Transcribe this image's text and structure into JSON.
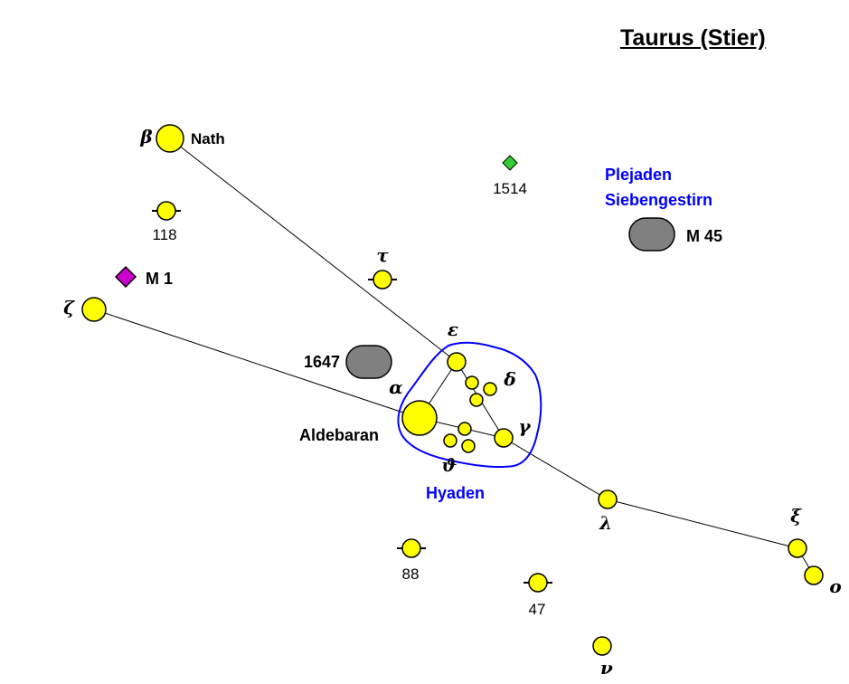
{
  "title": "Taurus (Stier)",
  "colors": {
    "star_fill": "#ffff00",
    "star_stroke": "#000000",
    "nebula_green": "#33cc33",
    "crab_magenta": "#cc00cc",
    "cluster_gray": "#808080",
    "hyades_outline": "#0000ff",
    "blue_label": "#0000ff",
    "line": "#000000"
  },
  "stars": [
    {
      "id": "beta",
      "size": "large",
      "greek": "β",
      "name": "Nath"
    },
    {
      "id": "zeta",
      "size": "medium",
      "greek": "ζ"
    },
    {
      "id": "118",
      "size": "small",
      "number": "118",
      "variable": true
    },
    {
      "id": "tau",
      "size": "small",
      "greek": "τ",
      "variable": true
    },
    {
      "id": "epsilon",
      "size": "small",
      "greek": "ε"
    },
    {
      "id": "delta1",
      "size": "tiny"
    },
    {
      "id": "delta2",
      "size": "tiny",
      "greek": "δ"
    },
    {
      "id": "delta3",
      "size": "tiny"
    },
    {
      "id": "alpha",
      "size": "xlarge",
      "greek": "α",
      "name": "Aldebaran"
    },
    {
      "id": "theta1",
      "size": "tiny"
    },
    {
      "id": "theta2",
      "size": "tiny"
    },
    {
      "id": "theta3",
      "size": "tiny",
      "greek": "ϑ"
    },
    {
      "id": "gamma",
      "size": "small",
      "greek": "γ"
    },
    {
      "id": "lambda",
      "size": "small",
      "greek": "λ"
    },
    {
      "id": "xi",
      "size": "small",
      "greek": "ξ"
    },
    {
      "id": "omicron",
      "size": "small",
      "greek": "ο"
    },
    {
      "id": "88",
      "size": "small",
      "number": "88",
      "variable": true
    },
    {
      "id": "47",
      "size": "small",
      "number": "47",
      "variable": true
    },
    {
      "id": "nu",
      "size": "small",
      "greek": "ν"
    }
  ],
  "lines": [
    [
      "beta",
      "epsilon"
    ],
    [
      "zeta",
      "alpha"
    ],
    [
      "epsilon",
      "alpha"
    ],
    [
      "epsilon",
      "gamma"
    ],
    [
      "alpha",
      "gamma"
    ],
    [
      "gamma",
      "lambda"
    ],
    [
      "lambda",
      "xi"
    ],
    [
      "xi",
      "omicron"
    ]
  ],
  "objects": [
    {
      "id": "m1",
      "type": "crab-diamond",
      "label": "M 1"
    },
    {
      "id": "ngc1514",
      "type": "green-diamond",
      "label": "1514"
    },
    {
      "id": "ngc1647",
      "type": "gray-oval",
      "label": "1647"
    },
    {
      "id": "m45",
      "type": "gray-oval",
      "label": "M 45"
    }
  ],
  "cluster_labels": {
    "pleiades_line1": "Plejaden",
    "pleiades_line2": "Siebengestirn",
    "hyades": "Hyaden"
  }
}
